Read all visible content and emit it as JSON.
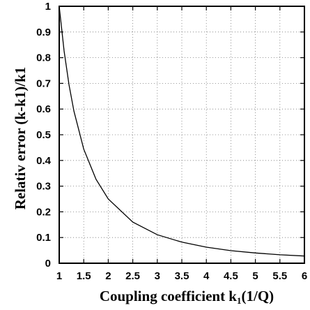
{
  "chart_data": {
    "type": "line",
    "title": "",
    "xlabel_main": "Coupling coefficient k",
    "xlabel_sub": "1",
    "xlabel_tail": "(1/Q)",
    "ylabel": "Relativ error (k-k1)/k1",
    "xlim": [
      1,
      6
    ],
    "ylim": [
      0,
      1
    ],
    "x_ticks": [
      "1",
      "1.5",
      "2",
      "2.5",
      "3",
      "3.5",
      "4",
      "4.5",
      "5",
      "5.5",
      "6"
    ],
    "y_ticks": [
      "0",
      "0.1",
      "0.2",
      "0.3",
      "0.4",
      "0.5",
      "0.6",
      "0.7",
      "0.8",
      "0.9",
      "1"
    ],
    "grid": true,
    "grid_style": "dotted",
    "series": [
      {
        "x": [
          1.0,
          1.1,
          1.2,
          1.3,
          1.5,
          1.75,
          2.0,
          2.5,
          3.0,
          3.5,
          4.0,
          4.5,
          5.0,
          5.5,
          6.0
        ],
        "y": [
          1.0,
          0.826,
          0.694,
          0.592,
          0.444,
          0.327,
          0.25,
          0.16,
          0.111,
          0.082,
          0.0625,
          0.049,
          0.04,
          0.033,
          0.028
        ]
      }
    ]
  }
}
